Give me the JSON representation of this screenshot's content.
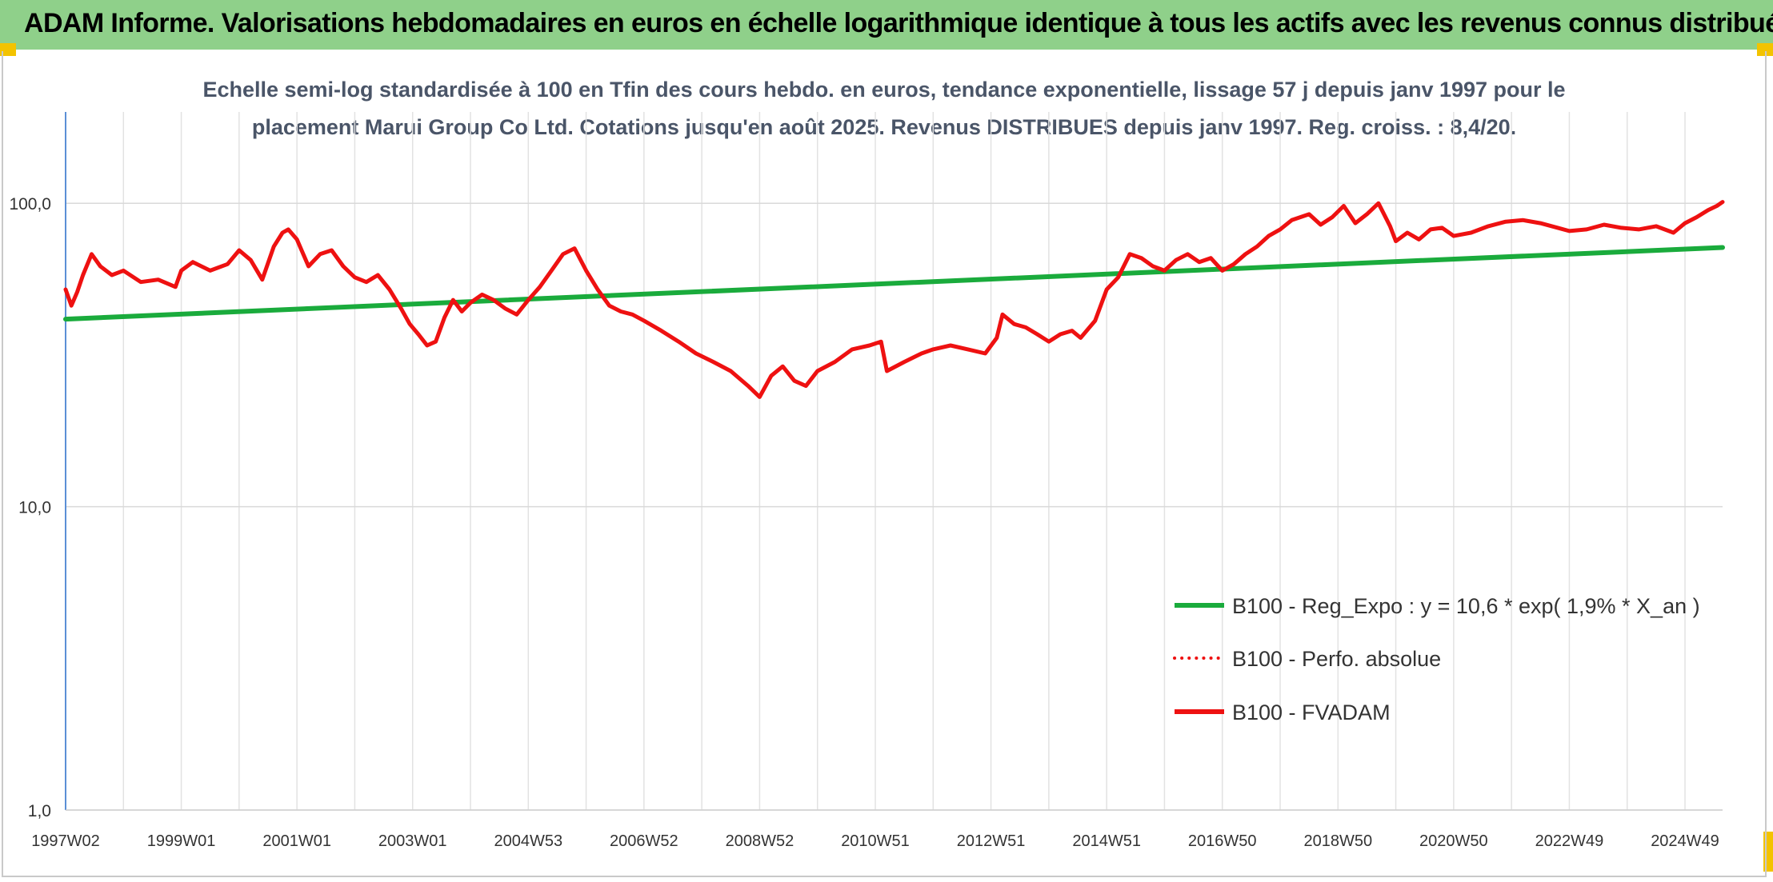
{
  "banner": {
    "title": "ADAM Informe. Valorisations hebdomadaires en euros en échelle logarithmique identique à tous les actifs avec les revenus connus distribués",
    "background": "#8fd08a"
  },
  "chart_data": {
    "type": "line",
    "title_line1": "Echelle semi-log standardisée à 100 en Tfin des cours hebdo. en euros, tendance exponentielle, lissage 57 j depuis janv 1997 pour le",
    "title_line2": "placement Marui Group Co Ltd. Cotations jusqu'en août 2025. Revenus DISTRIBUES depuis janv 1997. Reg. croiss. : 8,4/20.",
    "y_scale": "log",
    "ylim": [
      1,
      200
    ],
    "y_ticks": [
      {
        "value": 1,
        "label": "1,0"
      },
      {
        "value": 10,
        "label": "10,0"
      },
      {
        "value": 100,
        "label": "100,0"
      }
    ],
    "x_range": [
      1997.0,
      2025.65
    ],
    "x_ticks": [
      {
        "t": 1997.0,
        "label": "1997W02"
      },
      {
        "t": 1999.0,
        "label": "1999W01"
      },
      {
        "t": 2001.0,
        "label": "2001W01"
      },
      {
        "t": 2003.0,
        "label": "2003W01"
      },
      {
        "t": 2005.0,
        "label": "2004W53"
      },
      {
        "t": 2007.0,
        "label": "2006W52"
      },
      {
        "t": 2009.0,
        "label": "2008W52"
      },
      {
        "t": 2011.0,
        "label": "2010W51"
      },
      {
        "t": 2013.0,
        "label": "2012W51"
      },
      {
        "t": 2015.0,
        "label": "2014W51"
      },
      {
        "t": 2017.0,
        "label": "2016W50"
      },
      {
        "t": 2019.0,
        "label": "2018W50"
      },
      {
        "t": 2021.0,
        "label": "2020W50"
      },
      {
        "t": 2023.0,
        "label": "2022W49"
      },
      {
        "t": 2025.0,
        "label": "2024W49"
      }
    ],
    "grid": true,
    "legend_position": "bottom-right",
    "series": [
      {
        "name": "B100 - Reg_Expo : y = 10,6 * exp( 1,9% *  X_an )",
        "color": "#1aab3c",
        "style": "solid",
        "x": [
          1997.0,
          2025.65
        ],
        "y": [
          41.5,
          71.5
        ]
      },
      {
        "name": "B100 - Perfo. absolue",
        "color": "#ee1111",
        "style": "dotted",
        "x": [],
        "y": []
      },
      {
        "name": "B100 - FVADAM",
        "color": "#ee1111",
        "style": "solid",
        "x": [
          1997.0,
          1997.1,
          1997.2,
          1997.3,
          1997.45,
          1997.6,
          1997.8,
          1998.0,
          1998.3,
          1998.6,
          1998.9,
          1999.0,
          1999.2,
          1999.5,
          1999.8,
          2000.0,
          2000.2,
          2000.4,
          2000.6,
          2000.75,
          2000.85,
          2001.0,
          2001.2,
          2001.4,
          2001.6,
          2001.8,
          2002.0,
          2002.2,
          2002.4,
          2002.6,
          2002.8,
          2002.95,
          2003.1,
          2003.25,
          2003.4,
          2003.55,
          2003.7,
          2003.85,
          2004.0,
          2004.2,
          2004.4,
          2004.6,
          2004.8,
          2005.0,
          2005.2,
          2005.4,
          2005.6,
          2005.8,
          2006.0,
          2006.2,
          2006.4,
          2006.6,
          2006.8,
          2007.0,
          2007.3,
          2007.6,
          2007.9,
          2008.2,
          2008.5,
          2008.8,
          2009.0,
          2009.2,
          2009.4,
          2009.6,
          2009.8,
          2010.0,
          2010.3,
          2010.6,
          2010.9,
          2011.1,
          2011.2,
          2011.5,
          2011.8,
          2012.0,
          2012.3,
          2012.6,
          2012.9,
          2013.1,
          2013.2,
          2013.4,
          2013.6,
          2013.8,
          2014.0,
          2014.2,
          2014.4,
          2014.55,
          2014.8,
          2015.0,
          2015.2,
          2015.4,
          2015.6,
          2015.8,
          2016.0,
          2016.2,
          2016.4,
          2016.6,
          2016.8,
          2017.0,
          2017.2,
          2017.4,
          2017.6,
          2017.8,
          2018.0,
          2018.2,
          2018.5,
          2018.7,
          2018.9,
          2019.1,
          2019.3,
          2019.5,
          2019.7,
          2019.9,
          2020.0,
          2020.2,
          2020.4,
          2020.6,
          2020.8,
          2021.0,
          2021.3,
          2021.6,
          2021.9,
          2022.2,
          2022.5,
          2022.8,
          2023.0,
          2023.3,
          2023.6,
          2023.9,
          2024.2,
          2024.5,
          2024.8,
          2025.0,
          2025.2,
          2025.4,
          2025.55,
          2025.65
        ],
        "y": [
          52,
          46,
          51,
          58,
          68,
          62,
          58,
          60,
          55,
          56,
          53,
          60,
          64,
          60,
          63,
          70,
          65,
          56,
          72,
          80,
          82,
          76,
          62,
          68,
          70,
          62,
          57,
          55,
          58,
          52,
          45,
          40,
          37,
          34,
          35,
          42,
          48,
          44,
          47,
          50,
          48,
          45,
          43,
          48,
          53,
          60,
          68,
          71,
          60,
          52,
          46,
          44,
          43,
          41,
          38,
          35,
          32,
          30,
          28,
          25,
          23,
          27,
          29,
          26,
          25,
          28,
          30,
          33,
          34,
          35,
          28,
          30,
          32,
          33,
          34,
          33,
          32,
          36,
          43,
          40,
          39,
          37,
          35,
          37,
          38,
          36,
          41,
          52,
          57,
          68,
          66,
          62,
          60,
          65,
          68,
          64,
          66,
          60,
          63,
          68,
          72,
          78,
          82,
          88,
          92,
          85,
          90,
          98,
          86,
          92,
          100,
          84,
          75,
          80,
          76,
          82,
          83,
          78,
          80,
          84,
          87,
          88,
          86,
          83,
          81,
          82,
          85,
          83,
          82,
          84,
          80,
          86,
          90,
          95,
          98,
          101
        ]
      }
    ]
  }
}
